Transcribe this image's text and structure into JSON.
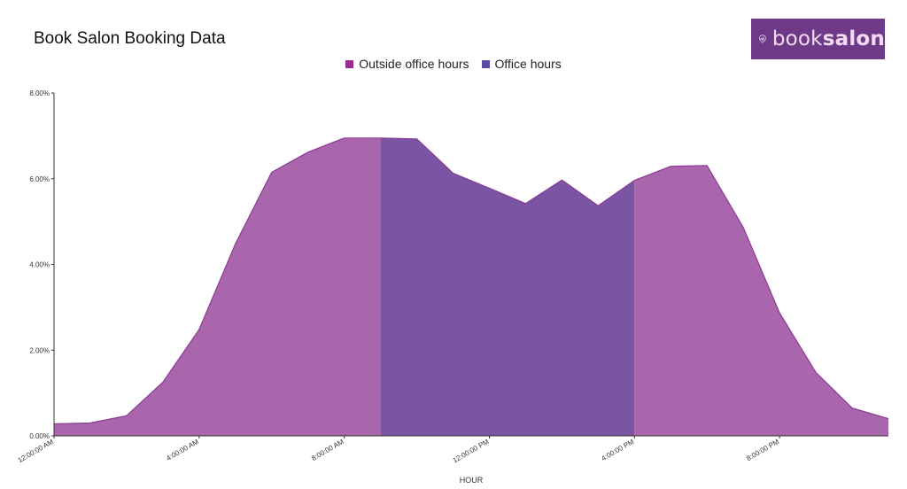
{
  "header": {
    "title": "Book Salon Booking Data"
  },
  "logo": {
    "text_light": "book",
    "text_bold": "salon",
    "icon": "scissors-pin-icon"
  },
  "colors": {
    "outside": "#aa66ad",
    "office": "#7955a4",
    "outside_swatch": "#9b2d8c",
    "office_swatch": "#5c4aa5",
    "outside_line": "#8a3a93"
  },
  "chart_data": {
    "type": "area",
    "xlabel": "HOUR",
    "ylabel": "",
    "ylim": [
      0,
      8
    ],
    "xlim": [
      0,
      23
    ],
    "x_tick_labels": [
      {
        "x": 0,
        "label": "12:00:00 AM"
      },
      {
        "x": 4,
        "label": "4:00:00 AM"
      },
      {
        "x": 8,
        "label": "8:00:00 AM"
      },
      {
        "x": 12,
        "label": "12:00:00 PM"
      },
      {
        "x": 16,
        "label": "4:00:00 PM"
      },
      {
        "x": 20,
        "label": "8:00:00 PM"
      }
    ],
    "y_tick_labels": [
      {
        "y": 0,
        "label": "0.00%"
      },
      {
        "y": 2,
        "label": "2.00%"
      },
      {
        "y": 4,
        "label": "4.00%"
      },
      {
        "y": 6,
        "label": "6.00%"
      },
      {
        "y": 8,
        "label": "8.00%"
      }
    ],
    "hours": [
      0,
      1,
      2,
      3,
      4,
      5,
      6,
      7,
      8,
      9,
      10,
      11,
      12,
      13,
      14,
      15,
      16,
      17,
      18,
      19,
      20,
      21,
      22,
      23
    ],
    "values": [
      0.28,
      0.3,
      0.47,
      1.25,
      2.48,
      4.48,
      6.15,
      6.62,
      6.95,
      6.95,
      6.93,
      6.13,
      5.78,
      5.42,
      5.97,
      5.37,
      5.96,
      6.29,
      6.31,
      4.86,
      2.87,
      1.48,
      0.65,
      0.4
    ],
    "series": [
      {
        "name": "Outside office hours",
        "hours": [
          0,
          1,
          2,
          3,
          4,
          5,
          6,
          7,
          8,
          9
        ],
        "key": "outside"
      },
      {
        "name": "Office hours",
        "hours": [
          9,
          10,
          11,
          12,
          13,
          14,
          15,
          16
        ],
        "key": "office"
      },
      {
        "name": "Outside office hours",
        "hours": [
          16,
          17,
          18,
          19,
          20,
          21,
          22,
          23
        ],
        "key": "outside"
      }
    ],
    "legend": [
      {
        "name": "Outside office hours",
        "key": "outside"
      },
      {
        "name": "Office hours",
        "key": "office"
      }
    ],
    "legend_position": "top-center",
    "grid": false
  }
}
